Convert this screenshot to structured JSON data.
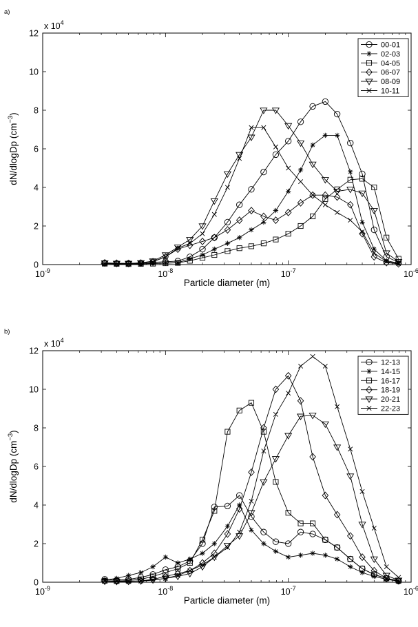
{
  "chart_data": [
    {
      "panel_label": "a)",
      "type": "line",
      "xscale": "log",
      "xlim": [
        1e-09,
        1e-06
      ],
      "ylim": [
        0,
        120000
      ],
      "x_ticks": [
        1e-09,
        1e-08,
        1e-07,
        1e-06
      ],
      "x_tick_labels": [
        {
          "base": "10",
          "exp": "-9"
        },
        {
          "base": "10",
          "exp": "-8"
        },
        {
          "base": "10",
          "exp": "-7"
        },
        {
          "base": "10",
          "exp": "-6"
        }
      ],
      "y_ticks": [
        0,
        20000,
        40000,
        60000,
        80000,
        100000,
        120000
      ],
      "y_tick_labels": [
        "0",
        "2",
        "4",
        "6",
        "8",
        "10",
        "12"
      ],
      "y_multiplier": {
        "prefix": "x 10",
        "exp": "4"
      },
      "xlabel": "Particle diameter (m)",
      "ylabel": {
        "main": "dN/dlogDp (cm",
        "exp": "−3",
        "close": ")"
      },
      "legend_position": "top-right",
      "grid": false,
      "x": [
        3.2e-09,
        4e-09,
        5e-09,
        6.3e-09,
        7.9e-09,
        1e-08,
        1.26e-08,
        1.58e-08,
        2e-08,
        2.5e-08,
        3.2e-08,
        4e-08,
        5e-08,
        6.3e-08,
        7.9e-08,
        1e-07,
        1.26e-07,
        1.58e-07,
        2e-07,
        2.5e-07,
        3.2e-07,
        4e-07,
        5e-07,
        6.3e-07,
        7.9e-07
      ],
      "series": [
        {
          "name": "00-01",
          "marker": "circle",
          "values": [
            800,
            600,
            600,
            800,
            1200,
            1500,
            1800,
            4000,
            8000,
            14000,
            22000,
            31000,
            39000,
            48000,
            57000,
            64000,
            74000,
            82000,
            84500,
            78000,
            63000,
            47000,
            18000,
            4000,
            1200
          ]
        },
        {
          "name": "02-03",
          "marker": "star",
          "values": [
            500,
            400,
            300,
            400,
            600,
            800,
            1000,
            3000,
            5000,
            8000,
            11000,
            14000,
            18000,
            22000,
            28000,
            38000,
            49000,
            62000,
            67000,
            67000,
            48000,
            22000,
            8000,
            2000,
            800
          ]
        },
        {
          "name": "04-05",
          "marker": "square",
          "values": [
            500,
            400,
            300,
            400,
            500,
            700,
            900,
            2000,
            3500,
            5000,
            7000,
            8500,
            9500,
            11000,
            13000,
            16000,
            20000,
            25000,
            34000,
            39000,
            44000,
            44500,
            40000,
            14000,
            3000
          ]
        },
        {
          "name": "06-07",
          "marker": "diamond",
          "values": [
            900,
            700,
            600,
            800,
            1500,
            4000,
            8000,
            10000,
            12000,
            14000,
            18000,
            23000,
            28000,
            25000,
            23000,
            27000,
            32000,
            36000,
            36000,
            35000,
            31000,
            16000,
            4000,
            1000,
            400
          ]
        },
        {
          "name": "08-09",
          "marker": "triangle-down",
          "values": [
            800,
            600,
            600,
            900,
            1800,
            5000,
            9000,
            13000,
            20000,
            33000,
            47000,
            57000,
            66000,
            80000,
            80000,
            72000,
            63000,
            52000,
            44000,
            38000,
            39000,
            37000,
            28000,
            6000,
            1500
          ]
        },
        {
          "name": "10-11",
          "marker": "x",
          "values": [
            500,
            400,
            400,
            700,
            1500,
            4000,
            8500,
            11000,
            16000,
            26000,
            40000,
            55000,
            71000,
            71000,
            61000,
            50000,
            43000,
            36000,
            31000,
            27000,
            23000,
            17000,
            6000,
            1500,
            500
          ]
        }
      ]
    },
    {
      "panel_label": "b)",
      "type": "line",
      "xscale": "log",
      "xlim": [
        1e-09,
        1e-06
      ],
      "ylim": [
        0,
        120000
      ],
      "x_ticks": [
        1e-09,
        1e-08,
        1e-07,
        1e-06
      ],
      "x_tick_labels": [
        {
          "base": "10",
          "exp": "-9"
        },
        {
          "base": "10",
          "exp": "-8"
        },
        {
          "base": "10",
          "exp": "-7"
        },
        {
          "base": "10",
          "exp": "-6"
        }
      ],
      "y_ticks": [
        0,
        20000,
        40000,
        60000,
        80000,
        100000,
        120000
      ],
      "y_tick_labels": [
        "0",
        "2",
        "4",
        "6",
        "8",
        "10",
        "12"
      ],
      "y_multiplier": {
        "prefix": "x 10",
        "exp": "4"
      },
      "xlabel": "Particle diameter (m)",
      "ylabel": {
        "main": "dN/dlogDp (cm",
        "exp": "−3",
        "close": ")"
      },
      "legend_position": "top-right",
      "grid": false,
      "x": [
        3.2e-09,
        4e-09,
        5e-09,
        6.3e-09,
        7.9e-09,
        1e-08,
        1.26e-08,
        1.58e-08,
        2e-08,
        2.5e-08,
        3.2e-08,
        4e-08,
        5e-08,
        6.3e-08,
        7.9e-08,
        1e-07,
        1.26e-07,
        1.58e-07,
        2e-07,
        2.5e-07,
        3.2e-07,
        4e-07,
        5e-07,
        6.3e-07,
        7.9e-07
      ],
      "series": [
        {
          "name": "12-13",
          "marker": "circle",
          "values": [
            1500,
            1000,
            1500,
            2500,
            4000,
            6500,
            8000,
            11000,
            20000,
            39000,
            39500,
            45000,
            34000,
            26000,
            21000,
            20000,
            26000,
            25000,
            22000,
            18000,
            12000,
            7000,
            4000,
            2000,
            600
          ]
        },
        {
          "name": "14-15",
          "marker": "star",
          "values": [
            1200,
            2000,
            3500,
            5000,
            8000,
            13000,
            10000,
            12000,
            15000,
            20000,
            29000,
            40000,
            27000,
            20000,
            16000,
            13000,
            14000,
            15000,
            14000,
            12000,
            8000,
            5000,
            3000,
            1500,
            500
          ]
        },
        {
          "name": "16-17",
          "marker": "square",
          "values": [
            800,
            600,
            900,
            1500,
            3000,
            5000,
            7000,
            10000,
            22000,
            37000,
            78000,
            89000,
            93000,
            78000,
            52000,
            36000,
            30500,
            30500,
            22000,
            18000,
            12000,
            7000,
            4000,
            2000,
            800
          ]
        },
        {
          "name": "18-19",
          "marker": "diamond",
          "values": [
            600,
            500,
            500,
            700,
            1500,
            3000,
            4500,
            6000,
            10000,
            15000,
            25000,
            38000,
            57000,
            80000,
            100000,
            107000,
            94000,
            65000,
            45000,
            35000,
            24000,
            13000,
            6000,
            2000,
            700
          ]
        },
        {
          "name": "20-21",
          "marker": "triangle-down",
          "values": [
            500,
            400,
            500,
            700,
            1200,
            2000,
            3000,
            4500,
            8000,
            13000,
            19000,
            24000,
            36000,
            52000,
            64000,
            76000,
            86000,
            86500,
            82000,
            70000,
            55000,
            30000,
            12000,
            3500,
            1000
          ]
        },
        {
          "name": "22-23",
          "marker": "x",
          "values": [
            500,
            400,
            400,
            600,
            1000,
            2000,
            3500,
            6000,
            9000,
            13000,
            18000,
            26000,
            42000,
            68000,
            87000,
            98000,
            112000,
            117000,
            112000,
            91000,
            69000,
            47000,
            28000,
            8000,
            2500
          ]
        }
      ]
    }
  ]
}
